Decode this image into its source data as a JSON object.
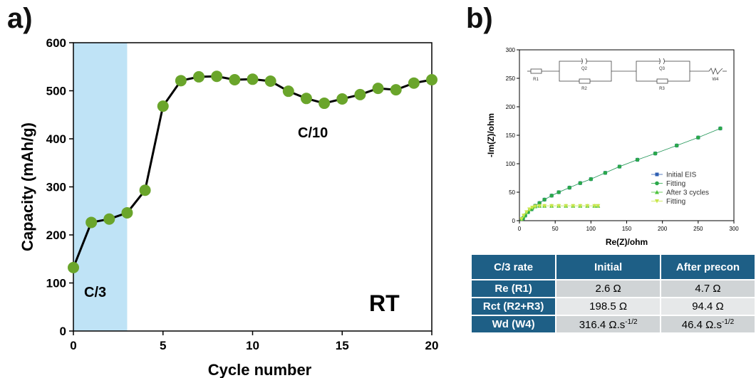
{
  "panel_a": {
    "label": "a)"
  },
  "panel_b": {
    "label": "b)"
  },
  "chart_data": [
    {
      "type": "line",
      "xlabel": "Cycle number",
      "ylabel": "Capacity (mAh/g)",
      "xlim": [
        0,
        20
      ],
      "ylim": [
        0,
        600
      ],
      "xticks": [
        "0",
        "5",
        "10",
        "15",
        "20"
      ],
      "yticks": [
        "0",
        "100",
        "200",
        "300",
        "400",
        "500",
        "600"
      ],
      "x": [
        0,
        1,
        2,
        3,
        4,
        5,
        6,
        7,
        8,
        9,
        10,
        11,
        12,
        13,
        14,
        15,
        16,
        17,
        18,
        19,
        20
      ],
      "series": [
        {
          "values": [
            132,
            226,
            233,
            246,
            293,
            468,
            521,
            529,
            530,
            523,
            524,
            520,
            499,
            484,
            474,
            483,
            492,
            505,
            502,
            516,
            523
          ]
        }
      ],
      "shaded_region": {
        "x_from": 0,
        "x_to": 3,
        "color": "#bfe3f6"
      },
      "annotations": [
        "C/3",
        "C/10",
        "RT"
      ],
      "marker_color": "#6aa52b",
      "line_color": "#000000"
    },
    {
      "type": "scatter",
      "xlabel": "Re(Z)/ohm",
      "ylabel": "-Im(Z)/ohm",
      "xlim": [
        0,
        300
      ],
      "ylim": [
        0,
        300
      ],
      "xticks": [
        "0",
        "50",
        "100",
        "150",
        "200",
        "250",
        "300"
      ],
      "yticks": [
        "0",
        "50",
        "100",
        "150",
        "200",
        "250",
        "300"
      ],
      "circuit_labels": [
        "R1",
        "Q2",
        "R2",
        "Q3",
        "R3",
        "W4"
      ],
      "series": [
        {
          "name": "Initial EIS",
          "color": "#2f5fb3",
          "marker": "square",
          "x": [
            5,
            8,
            12,
            17,
            22,
            28,
            35,
            45,
            55,
            70,
            85,
            100,
            120,
            140,
            165,
            190,
            220,
            250,
            281
          ],
          "y": [
            4,
            9,
            15,
            20,
            26,
            31,
            37,
            44,
            50,
            58,
            66,
            73,
            84,
            95,
            107,
            118,
            132,
            146,
            162
          ]
        },
        {
          "name": "Fitting",
          "color": "#2aa84a",
          "marker": "circle",
          "x": [
            5,
            8,
            12,
            17,
            22,
            28,
            35,
            45,
            55,
            70,
            85,
            100,
            120,
            140,
            165,
            190,
            220,
            250,
            281
          ],
          "y": [
            4,
            9,
            15,
            20,
            26,
            31,
            37,
            44,
            50,
            58,
            66,
            73,
            84,
            95,
            107,
            118,
            132,
            146,
            162
          ]
        },
        {
          "name": "After 3 cycles",
          "color": "#4cc23c",
          "marker": "triangle-up",
          "x": [
            3,
            6,
            10,
            14,
            18,
            22,
            28,
            35,
            45,
            55,
            65,
            75,
            85,
            95,
            105,
            110
          ],
          "y": [
            3,
            9,
            15,
            20,
            23,
            25,
            26,
            26,
            26,
            26,
            26,
            26,
            26,
            26,
            26,
            26
          ]
        },
        {
          "name": "Fitting",
          "color": "#c8e64a",
          "marker": "triangle-down",
          "x": [
            3,
            6,
            10,
            14,
            18,
            22,
            28,
            35,
            45,
            55,
            65,
            75,
            85,
            95,
            105,
            110
          ],
          "y": [
            3,
            9,
            15,
            20,
            23,
            25,
            26,
            26,
            26,
            26,
            26,
            26,
            26,
            26,
            26,
            26
          ]
        }
      ],
      "legend_position": "right"
    },
    {
      "type": "table",
      "headers": [
        "C/3 rate",
        "Initial",
        "After precon"
      ],
      "rows": [
        [
          "Re (R1)",
          "2.6 Ω",
          "4.7 Ω"
        ],
        [
          "Rct (R2+R3)",
          "198.5 Ω",
          "94.4 Ω"
        ],
        [
          "Wd (W4)",
          "316.4 Ω.s",
          "46.4 Ω.s"
        ]
      ],
      "superscripts": [
        "-1/2",
        "-1/2"
      ]
    }
  ]
}
